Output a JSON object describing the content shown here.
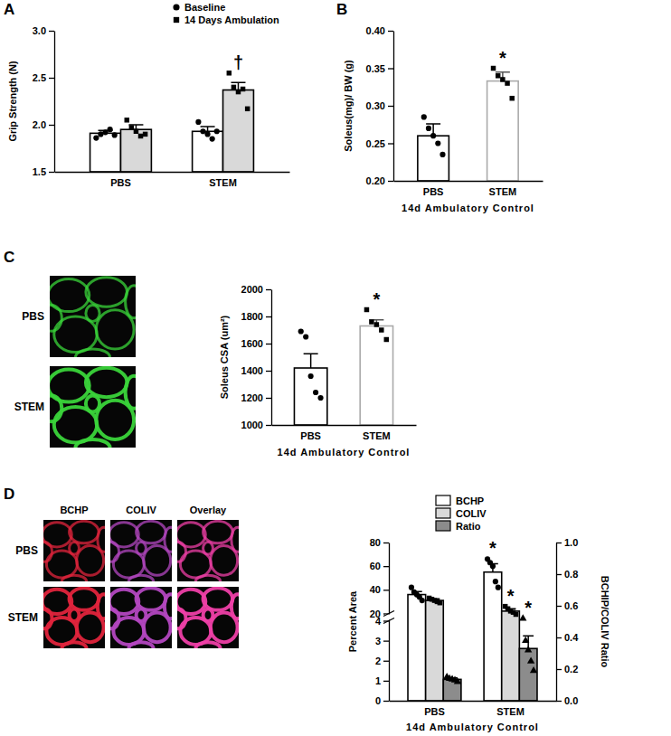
{
  "chart_data": [
    {
      "type": "bar",
      "panel": "A",
      "y_label": "Grip Strength (N)",
      "categories": [
        "PBS",
        "STEM"
      ],
      "series": [
        {
          "name": "Baseline",
          "color": "#ffffff",
          "marker": "circle",
          "values": [
            1.91,
            1.93
          ],
          "errors": [
            0.03,
            0.05
          ],
          "points": [
            [
              1.86,
              1.9,
              1.92,
              1.95,
              1.89
            ],
            [
              2.03,
              1.93,
              1.9,
              1.85,
              1.93
            ]
          ]
        },
        {
          "name": "14 Days Ambulation",
          "color": "#d9d9d9",
          "marker": "square",
          "values": [
            1.95,
            2.37
          ],
          "errors": [
            0.05,
            0.08
          ],
          "points": [
            [
              2.05,
              1.97,
              1.93,
              1.88,
              1.9
            ],
            [
              2.55,
              2.4,
              2.35,
              2.38,
              2.17
            ]
          ]
        }
      ],
      "ylim": [
        1.5,
        3.0
      ],
      "yticks": [
        1.5,
        {
          "value": 2.0,
          "label": "2.0"
        },
        2.5,
        {
          "value": 3.0,
          "label": "3.0"
        }
      ],
      "legend": "top",
      "annotations": [
        {
          "text": "†",
          "category": "STEM",
          "series": "14 Days Ambulation"
        }
      ]
    },
    {
      "type": "bar",
      "panel": "B",
      "y_label": "Soleus(mg)/ BW (g)",
      "x_label": "14d Ambulatory Control",
      "categories": [
        "PBS",
        "STEM"
      ],
      "series": [
        {
          "color": "#ffffff",
          "values": [
            0.26,
            0.333
          ],
          "errors": [
            0.016,
            0.012
          ],
          "points": [
            [
              0.285,
              0.27,
              0.26,
              0.25,
              0.235
            ],
            [
              0.35,
              0.34,
              0.335,
              0.33,
              0.31
            ]
          ]
        }
      ],
      "ylim": [
        0.2,
        0.4
      ],
      "yticks": [
        {
          "value": 0.2,
          "label": "0.20"
        },
        0.25,
        {
          "value": 0.3,
          "label": "0.30"
        },
        0.35,
        {
          "value": 0.4,
          "label": "0.40"
        }
      ],
      "annotations": [
        {
          "text": "*",
          "category": "STEM"
        }
      ]
    },
    {
      "type": "bar",
      "panel": "C",
      "y_label": "Soleus CSA (um²)",
      "x_label": "14d Ambulatory Control",
      "categories": [
        "PBS",
        "STEM"
      ],
      "series": [
        {
          "color": "#ffffff",
          "values": [
            1420,
            1730
          ],
          "errors": [
            105,
            45
          ],
          "points": [
            [
              1690,
              1650,
              1360,
              1240,
              1200
            ],
            [
              1850,
              1760,
              1740,
              1700,
              1630
            ]
          ]
        }
      ],
      "ylim": [
        1000,
        2000
      ],
      "yticks": [
        1000,
        1200,
        1400,
        1600,
        1800,
        2000
      ],
      "annotations": [
        {
          "text": "*",
          "category": "STEM"
        }
      ],
      "micrographs": {
        "rows": [
          "PBS",
          "STEM"
        ]
      }
    },
    {
      "type": "bar",
      "panel": "D",
      "y_label": "Percent Area",
      "y2_label": "BCHIP/COLIV Ratio",
      "x_label": "14d Ambulatory Control",
      "categories": [
        "PBS",
        "STEM"
      ],
      "series": [
        {
          "name": "BCHP",
          "color": "#ffffff",
          "marker": "circle",
          "values": [
            36,
            55
          ],
          "errors": [
            2.5,
            7
          ],
          "points": [
            [
              42,
              38,
              36,
              34,
              31
            ],
            [
              66,
              63,
              60,
              47,
              42
            ]
          ]
        },
        {
          "name": "COLIV",
          "color": "#d9d9d9",
          "marker": "square",
          "values": [
            31,
            22
          ],
          "errors": [
            1.5,
            2
          ],
          "points": [
            [
              33,
              32,
              31,
              30,
              29
            ],
            [
              26,
              24,
              22,
              21,
              18
            ]
          ]
        },
        {
          "name": "Ratio",
          "color": "#8c8c8c",
          "marker": "triangle",
          "axis": "y2",
          "values": [
            0.135,
            0.33
          ],
          "errors": [
            0.01,
            0.08
          ],
          "points": [
            [
              0.15,
              0.14,
              0.135,
              0.13,
              0.12
            ],
            [
              0.52,
              0.38,
              0.32,
              0.25,
              0.19
            ]
          ]
        }
      ],
      "ylim": [
        [
          0,
          4
        ],
        [
          20,
          80
        ]
      ],
      "yticks": [
        0,
        1,
        2,
        3,
        4,
        20,
        40,
        60,
        80
      ],
      "y2lim": [
        0,
        1.0
      ],
      "y2ticks": [
        {
          "value": 0,
          "label": "0.0"
        },
        0.2,
        0.4,
        0.6,
        0.8,
        {
          "value": 1.0,
          "label": "1.0"
        }
      ],
      "legend": "top right",
      "annotations": [
        {
          "text": "*",
          "category": "STEM",
          "series": "BCHP"
        },
        {
          "text": "*",
          "category": "STEM",
          "series": "COLIV"
        },
        {
          "text": "*",
          "category": "STEM",
          "series": "Ratio"
        }
      ],
      "micrographs": {
        "rows": [
          "PBS",
          "STEM"
        ],
        "columns": [
          "BCHP",
          "COLIV",
          "Overlay"
        ]
      }
    }
  ]
}
